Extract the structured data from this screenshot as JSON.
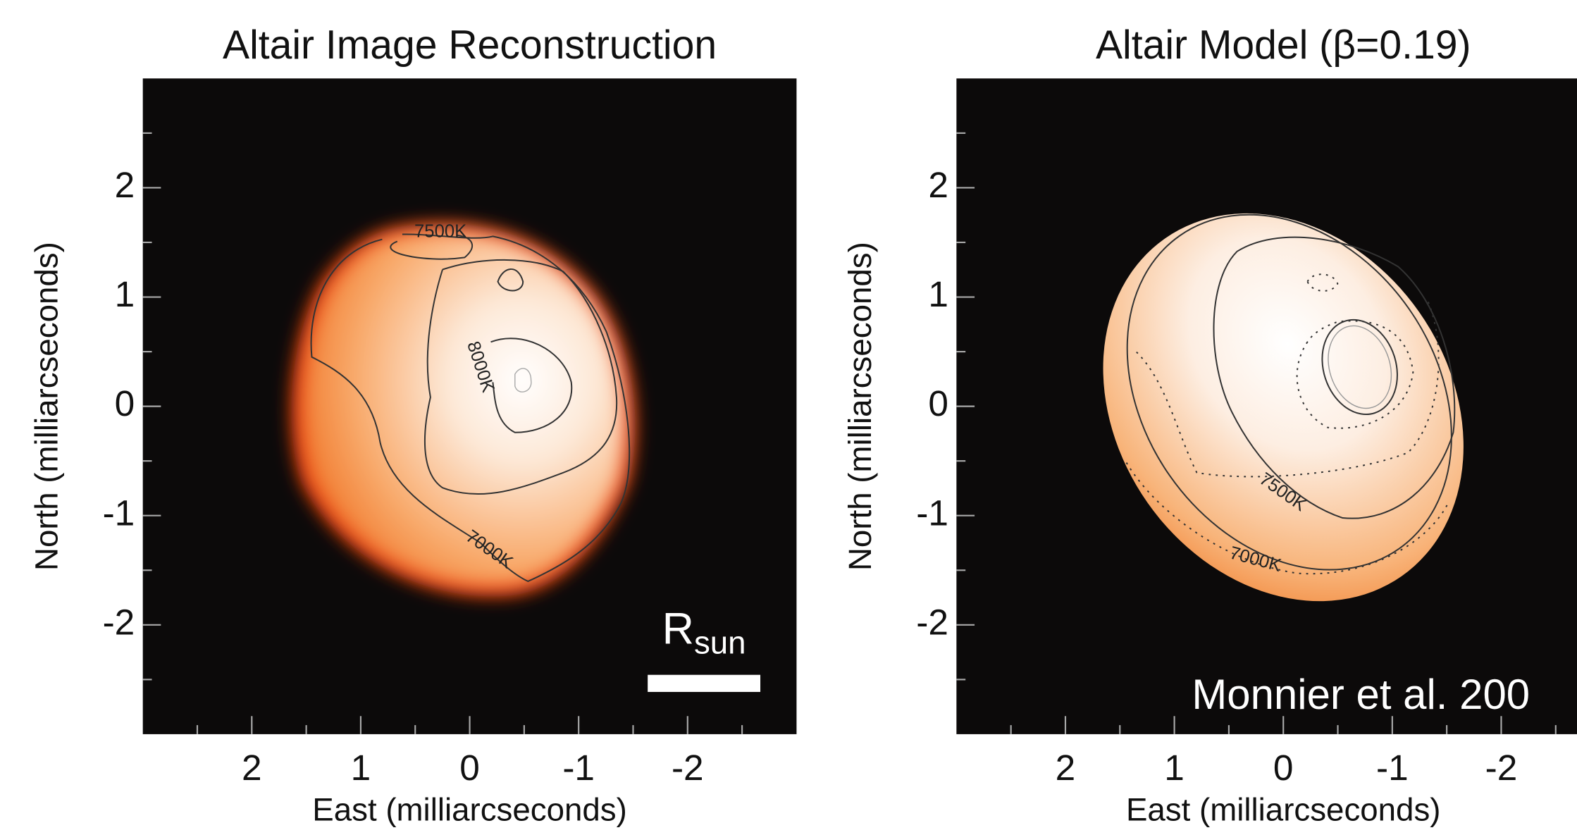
{
  "chart_data": [
    {
      "type": "image",
      "title": "Altair Image Reconstruction",
      "x_label": "East (milliarcseconds)",
      "y_label": "North (milliarcseconds)",
      "xlim": [
        3,
        -3
      ],
      "ylim": [
        -3,
        3
      ],
      "xticks": [
        2,
        1,
        0,
        -1,
        -2
      ],
      "yticks": [
        -2,
        -1,
        0,
        1,
        2
      ],
      "minor_xticks": [
        2.5,
        1.5,
        0.5,
        -0.5,
        -1.5,
        -2.5
      ],
      "minor_yticks": [
        -2.5,
        -1.5,
        -0.5,
        0.5,
        1.5,
        2.5
      ],
      "contour_labels": [
        "7500K",
        "8000K",
        "7000K"
      ],
      "annotation": "R",
      "annotation_subscript": "sun"
    },
    {
      "type": "image",
      "title": "Altair Model (β=0.19)",
      "x_label": "East (milliarcseconds)",
      "y_label": "North (milliarcseconds)",
      "xlim": [
        3,
        -3
      ],
      "ylim": [
        -3,
        3
      ],
      "xticks": [
        2,
        1,
        0,
        -1,
        -2
      ],
      "yticks": [
        -2,
        -1,
        0,
        1,
        2
      ],
      "minor_xticks": [
        2.5,
        1.5,
        0.5,
        -0.5,
        -1.5,
        -2.5
      ],
      "minor_yticks": [
        -2.5,
        -1.5,
        -0.5,
        0.5,
        1.5,
        2.5
      ],
      "contour_labels": [
        "7500K",
        "7000K"
      ],
      "annotation": "Monnier et al. 200"
    }
  ]
}
